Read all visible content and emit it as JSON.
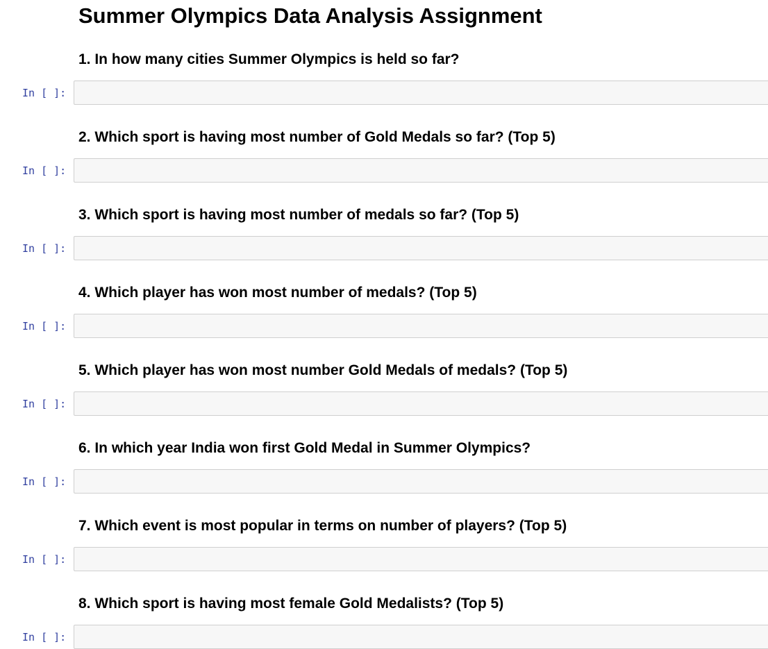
{
  "notebook": {
    "title": "Summer Olympics Data Analysis Assignment",
    "prompt_label": "In [ ]:",
    "questions": [
      {
        "text": "1. In how many cities Summer Olympics is held so far?",
        "code": ""
      },
      {
        "text": "2. Which sport is having most number of Gold Medals so far? (Top 5)",
        "code": ""
      },
      {
        "text": "3. Which sport is having most number of medals so far? (Top 5)",
        "code": ""
      },
      {
        "text": "4. Which player has won most number of medals? (Top 5)",
        "code": ""
      },
      {
        "text": "5. Which player has won most number Gold Medals of medals? (Top 5)",
        "code": ""
      },
      {
        "text": "6. In which year India won first Gold Medal in Summer Olympics?",
        "code": ""
      },
      {
        "text": "7. Which event is most popular in terms on number of players? (Top 5)",
        "code": ""
      },
      {
        "text": "8. Which sport is having most female Gold Medalists? (Top 5)",
        "code": ""
      }
    ]
  }
}
